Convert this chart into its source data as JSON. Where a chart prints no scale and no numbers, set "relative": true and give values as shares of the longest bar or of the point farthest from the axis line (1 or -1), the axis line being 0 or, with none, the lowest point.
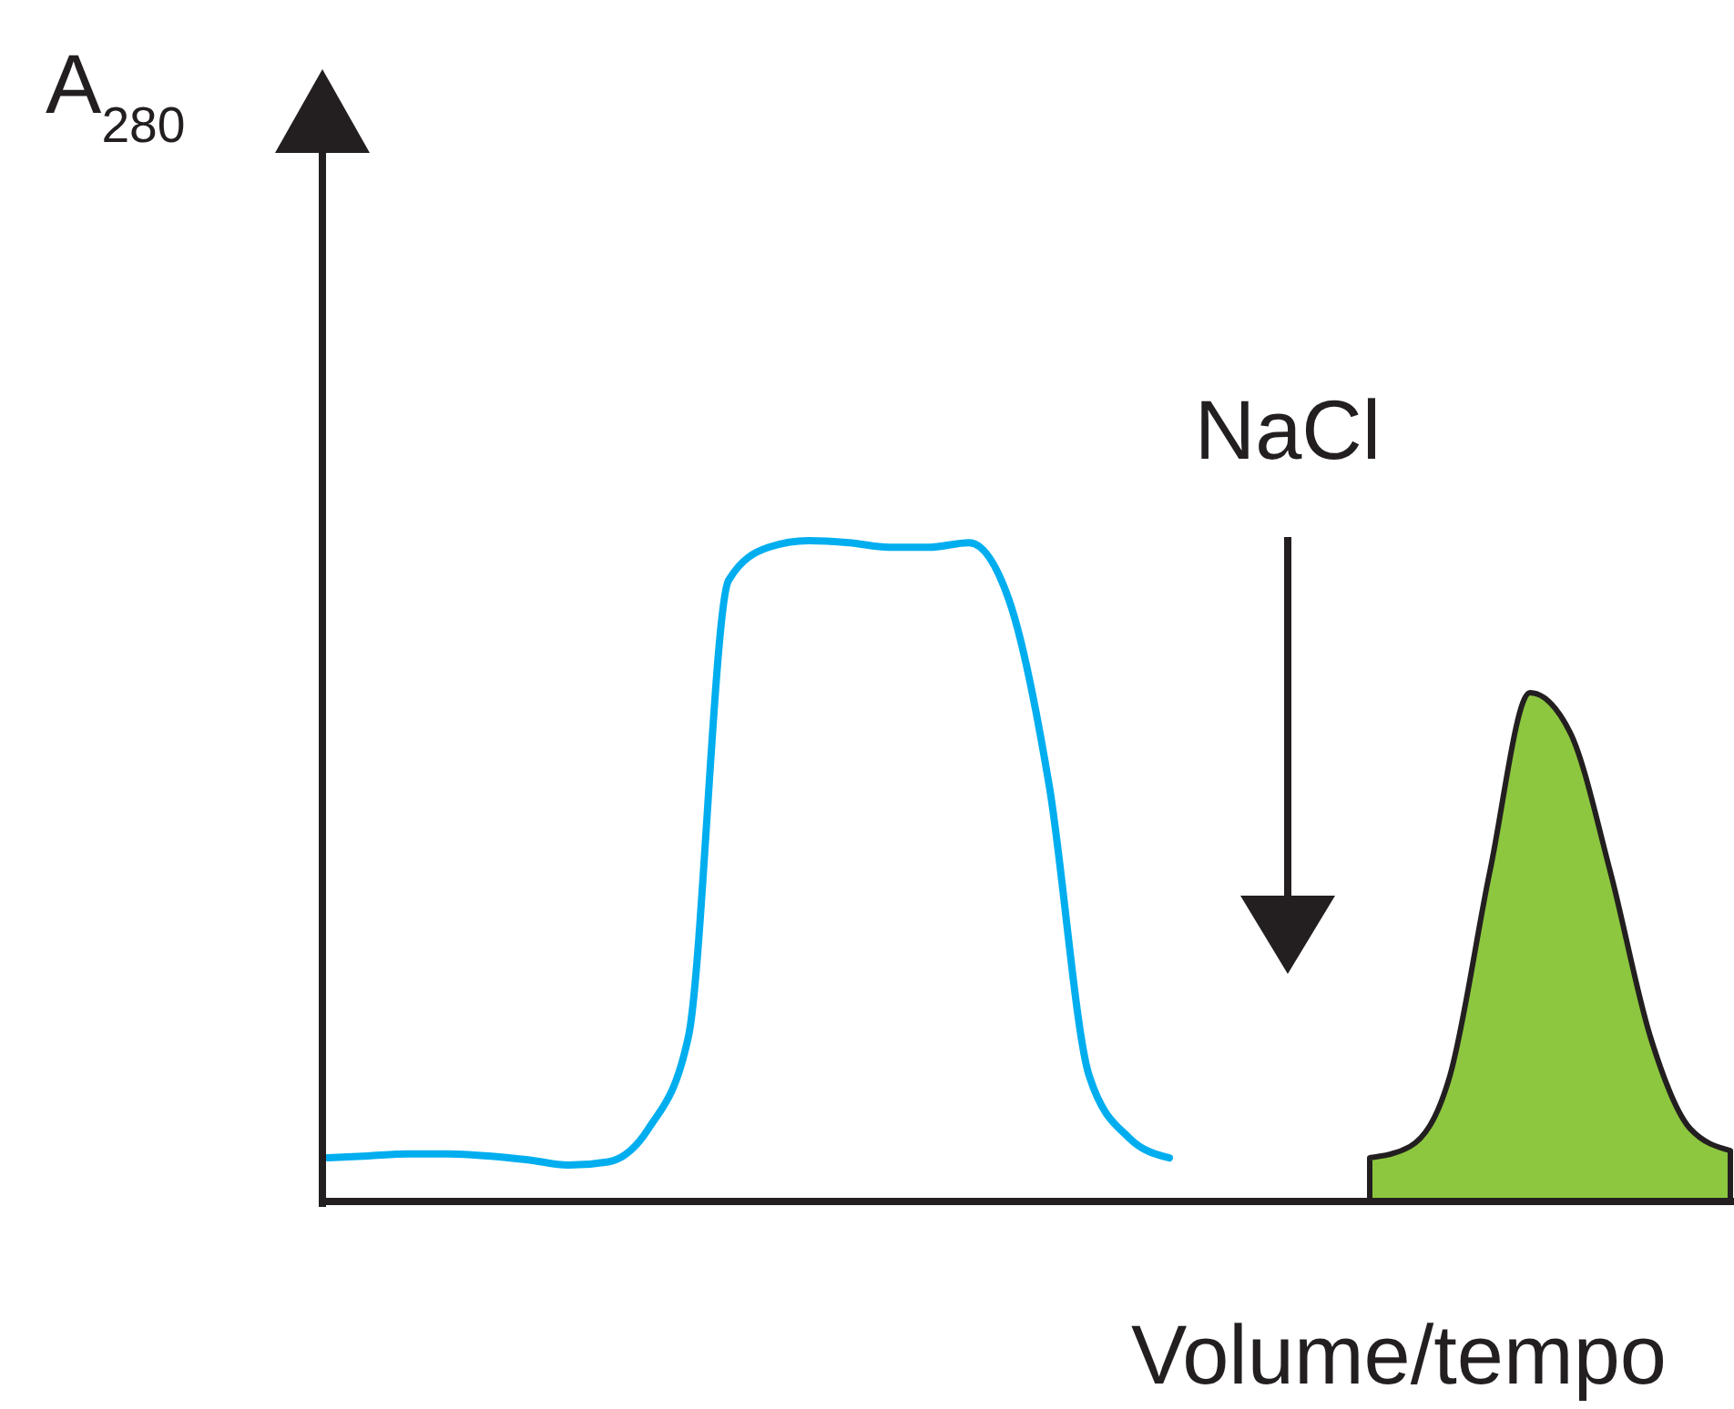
{
  "chart_data": {
    "type": "line",
    "relative": true,
    "ylabel": "A$_{280}$",
    "xlabel": "Volume/tempo",
    "annotations": [
      "NaCl"
    ],
    "categories": [
      null,
      null,
      null,
      null,
      null,
      null,
      null,
      null,
      null,
      null,
      null,
      null,
      null,
      null,
      null,
      null,
      null,
      null,
      null,
      null,
      null,
      null,
      null,
      null,
      null,
      null,
      null,
      null,
      null,
      null,
      null,
      null,
      null,
      null,
      null,
      null
    ],
    "series": [
      {
        "color": "#00aeef",
        "values": [
          0.066,
          0.069,
          0.072,
          0.072,
          0.069,
          0.063,
          0.055,
          0.06,
          0.11,
          0.25,
          0.94,
          0.99,
          1,
          0.997,
          0.99,
          0.99,
          0.997,
          0.91,
          0.63,
          0.19,
          0.096,
          0.066,
          null,
          null,
          null,
          null,
          null,
          null,
          null,
          null,
          null,
          null,
          null,
          null,
          null,
          null
        ]
      },
      {
        "type": "area",
        "color": "#8dc63f",
        "values": [
          null,
          null,
          null,
          null,
          null,
          null,
          null,
          null,
          null,
          null,
          null,
          null,
          null,
          null,
          null,
          null,
          null,
          null,
          null,
          null,
          null,
          null,
          null,
          null,
          null,
          null,
          0.066,
          0.083,
          0.19,
          0.5,
          0.77,
          0.71,
          0.5,
          0.25,
          0.11,
          0.077
        ]
      }
    ]
  }
}
